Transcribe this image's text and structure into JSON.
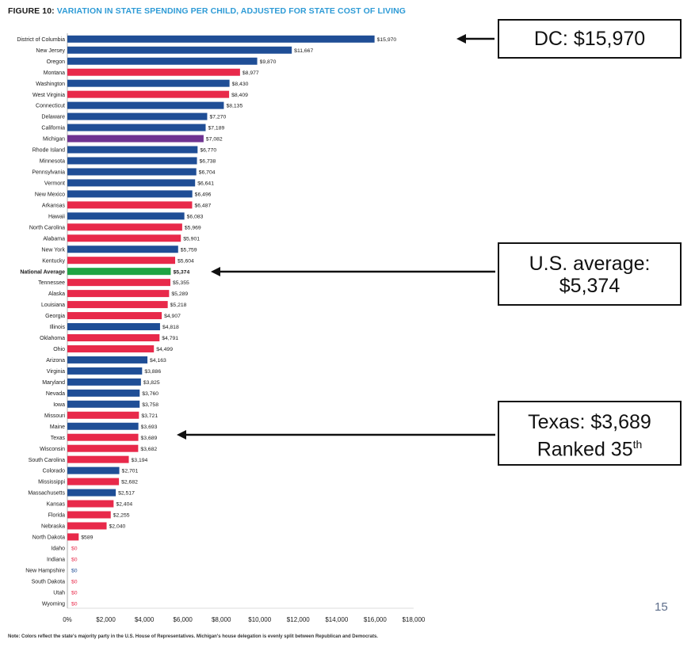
{
  "figure": {
    "title_lead": "FIGURE 10:",
    "title_rest": "VARIATION IN STATE SPENDING PER CHILD, ADJUSTED FOR STATE COST OF LIVING",
    "note": "Note: Colors reflect the state's majority party in the U.S. House of Representatives. Michigan's house delegation is evenly split between Republican and Democrats."
  },
  "colors": {
    "D": "#1f4e96",
    "R": "#e8294a",
    "S": "#6e3391",
    "N": "#1fa443",
    "zero_D": "#1f4e96",
    "zero_R": "#e8294a"
  },
  "callouts": {
    "dc": "DC: $15,970",
    "us_line1": "U.S. average:",
    "us_line2": "$5,374",
    "tx_line1": "Texas: $3,689",
    "tx_line2_base": "Ranked 35",
    "tx_line2_sup": "th"
  },
  "page_number": "15",
  "chart_data": {
    "type": "bar",
    "orientation": "horizontal",
    "xlim": [
      0,
      18000
    ],
    "xticks": [
      "0%",
      "$2,000",
      "$4,000",
      "$6,000",
      "$8,000",
      "$10,000",
      "$12,000",
      "$14,000",
      "$16,000",
      "$18,000"
    ],
    "xtick_values": [
      0,
      2000,
      4000,
      6000,
      8000,
      10000,
      12000,
      14000,
      16000,
      18000
    ],
    "categories": [
      "District of Columbia",
      "New Jersey",
      "Oregon",
      "Montana",
      "Washington",
      "West Virginia",
      "Connecticut",
      "Delaware",
      "California",
      "Michigan",
      "Rhode Island",
      "Minnesota",
      "Pennsylvania",
      "Vermont",
      "New Mexico",
      "Arkansas",
      "Hawaii",
      "North Carolina",
      "Alabama",
      "New York",
      "Kentucky",
      "National Average",
      "Tennessee",
      "Alaska",
      "Louisiana",
      "Georgia",
      "Illinois",
      "Oklahoma",
      "Ohio",
      "Arizona",
      "Virginia",
      "Maryland",
      "Nevada",
      "Iowa",
      "Missouri",
      "Maine",
      "Texas",
      "Wisconsin",
      "South Carolina",
      "Colorado",
      "Mississippi",
      "Massachusetts",
      "Kansas",
      "Florida",
      "Nebraska",
      "North Dakota",
      "Idaho",
      "Indiana",
      "New Hampshire",
      "South Dakota",
      "Utah",
      "Wyoming"
    ],
    "values": [
      15970,
      11667,
      9870,
      8977,
      8430,
      8409,
      8135,
      7270,
      7189,
      7082,
      6770,
      6738,
      6704,
      6641,
      6496,
      6487,
      6083,
      5969,
      5901,
      5759,
      5604,
      5374,
      5355,
      5289,
      5218,
      4907,
      4818,
      4791,
      4499,
      4163,
      3886,
      3825,
      3760,
      3758,
      3721,
      3693,
      3689,
      3682,
      3194,
      2701,
      2682,
      2517,
      2404,
      2255,
      2040,
      589,
      0,
      0,
      0,
      0,
      0,
      0
    ],
    "labels": [
      "$15,970",
      "$11,667",
      "$9,870",
      "$8,977",
      "$8,430",
      "$8,409",
      "$8,135",
      "$7,270",
      "$7,189",
      "$7,082",
      "$6,770",
      "$6,738",
      "$6,704",
      "$6,641",
      "$6,496",
      "$6,487",
      "$6,083",
      "$5,969",
      "$5,901",
      "$5,759",
      "$5,604",
      "$5,374",
      "$5,355",
      "$5,289",
      "$5,218",
      "$4,907",
      "$4,818",
      "$4,791",
      "$4,499",
      "$4,163",
      "$3,886",
      "$3,825",
      "$3,760",
      "$3,758",
      "$3,721",
      "$3,693",
      "$3,689",
      "$3,682",
      "$3,194",
      "$2,701",
      "$2,682",
      "$2,517",
      "$2,404",
      "$2,255",
      "$2,040",
      "$589",
      "$0",
      "$0",
      "$0",
      "$0",
      "$0",
      "$0"
    ],
    "party": [
      "D",
      "D",
      "D",
      "R",
      "D",
      "R",
      "D",
      "D",
      "D",
      "S",
      "D",
      "D",
      "D",
      "D",
      "D",
      "R",
      "D",
      "R",
      "R",
      "D",
      "R",
      "N",
      "R",
      "R",
      "R",
      "R",
      "D",
      "R",
      "R",
      "D",
      "D",
      "D",
      "D",
      "D",
      "R",
      "D",
      "R",
      "R",
      "R",
      "D",
      "R",
      "D",
      "R",
      "R",
      "R",
      "R",
      "R",
      "R",
      "D",
      "R",
      "R",
      "R"
    ]
  }
}
